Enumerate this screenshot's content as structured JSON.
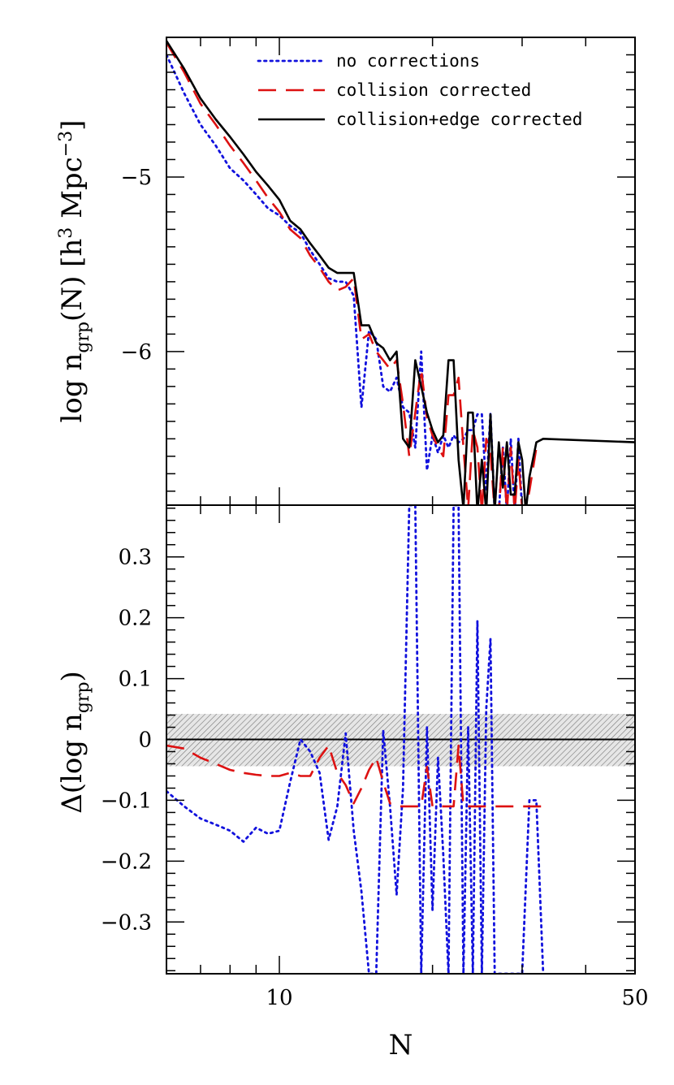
{
  "chart_data": [
    {
      "type": "line",
      "panel": "top",
      "xlabel": "",
      "ylabel": "log n_grp(N) [h^3 Mpc^-3]",
      "xscale": "log",
      "xlim": [
        6,
        50
      ],
      "ylim": [
        -6.88,
        -4.2
      ],
      "yticks": [
        {
          "value": -5,
          "label": "−5"
        },
        {
          "value": -6,
          "label": "−6"
        }
      ],
      "legend_position": "top-right",
      "series": [
        {
          "name": "no corrections",
          "color": "#1111dd",
          "style": "dotted",
          "points": [
            [
              6,
              -4.3
            ],
            [
              6.5,
              -4.52
            ],
            [
              7,
              -4.7
            ],
            [
              7.5,
              -4.82
            ],
            [
              8,
              -4.95
            ],
            [
              8.5,
              -5.02
            ],
            [
              9,
              -5.1
            ],
            [
              9.5,
              -5.18
            ],
            [
              10,
              -5.22
            ],
            [
              10.5,
              -5.28
            ],
            [
              11,
              -5.32
            ],
            [
              11.5,
              -5.42
            ],
            [
              12,
              -5.5
            ],
            [
              12.5,
              -5.58
            ],
            [
              13,
              -5.6
            ],
            [
              13.5,
              -5.6
            ],
            [
              14,
              -5.68
            ],
            [
              14.5,
              -6.32
            ],
            [
              15,
              -5.88
            ],
            [
              15.5,
              -5.93
            ],
            [
              16,
              -6.2
            ],
            [
              16.5,
              -6.23
            ],
            [
              17,
              -6.15
            ],
            [
              17.5,
              -6.32
            ],
            [
              18,
              -6.35
            ],
            [
              18.5,
              -6.55
            ],
            [
              19,
              -6.0
            ],
            [
              19.5,
              -6.68
            ],
            [
              20,
              -6.48
            ],
            [
              20.5,
              -6.58
            ],
            [
              21,
              -6.48
            ],
            [
              21.5,
              -6.55
            ],
            [
              22,
              -6.48
            ],
            [
              22.5,
              -6.52
            ],
            [
              23,
              -6.5
            ],
            [
              23.5,
              -6.45
            ],
            [
              24,
              -6.45
            ],
            [
              24.5,
              -6.36
            ],
            [
              25,
              -6.36
            ],
            [
              25.5,
              -6.8
            ],
            [
              26,
              -6.35
            ],
            [
              26.5,
              -6.92
            ],
            [
              27,
              -6.92
            ],
            [
              27.5,
              -6.55
            ],
            [
              28,
              -6.92
            ],
            [
              28.5,
              -6.5
            ],
            [
              29,
              -6.92
            ],
            [
              29.5,
              -6.5
            ],
            [
              30,
              -6.92
            ],
            [
              30.5,
              -6.92
            ],
            [
              50,
              -6.92
            ]
          ]
        },
        {
          "name": "collision corrected",
          "color": "#dd1111",
          "style": "dashed",
          "points": [
            [
              6,
              -4.23
            ],
            [
              6.5,
              -4.4
            ],
            [
              7,
              -4.58
            ],
            [
              7.5,
              -4.7
            ],
            [
              8,
              -4.82
            ],
            [
              8.5,
              -4.92
            ],
            [
              9,
              -5.02
            ],
            [
              9.5,
              -5.12
            ],
            [
              10,
              -5.2
            ],
            [
              10.5,
              -5.3
            ],
            [
              11,
              -5.35
            ],
            [
              11.5,
              -5.45
            ],
            [
              12,
              -5.52
            ],
            [
              12.5,
              -5.6
            ],
            [
              13,
              -5.65
            ],
            [
              13.5,
              -5.63
            ],
            [
              14,
              -5.58
            ],
            [
              14.5,
              -5.93
            ],
            [
              15,
              -5.9
            ],
            [
              15.5,
              -6.0
            ],
            [
              16,
              -6.05
            ],
            [
              16.5,
              -6.1
            ],
            [
              17,
              -6.05
            ],
            [
              17.5,
              -6.3
            ],
            [
              18,
              -6.6
            ],
            [
              18.5,
              -6.35
            ],
            [
              19,
              -6.1
            ],
            [
              19.5,
              -6.38
            ],
            [
              20,
              -6.48
            ],
            [
              20.5,
              -6.55
            ],
            [
              21,
              -6.6
            ],
            [
              21.5,
              -6.25
            ],
            [
              22,
              -6.25
            ],
            [
              22.5,
              -6.15
            ],
            [
              23,
              -6.55
            ],
            [
              23.5,
              -6.9
            ],
            [
              24,
              -6.45
            ],
            [
              24.5,
              -6.55
            ],
            [
              25,
              -6.92
            ],
            [
              25.5,
              -6.5
            ],
            [
              26,
              -6.58
            ],
            [
              26.5,
              -6.92
            ],
            [
              27,
              -6.92
            ],
            [
              27.5,
              -6.55
            ],
            [
              28,
              -6.92
            ],
            [
              28.5,
              -6.55
            ],
            [
              29,
              -6.92
            ],
            [
              29.5,
              -6.62
            ],
            [
              30,
              -6.9
            ],
            [
              30.5,
              -6.9
            ],
            [
              31,
              -6.8
            ],
            [
              32,
              -6.55
            ],
            [
              33,
              -6.55
            ]
          ]
        },
        {
          "name": "collision+edge corrected",
          "color": "#000000",
          "style": "solid",
          "points": [
            [
              6,
              -4.22
            ],
            [
              6.5,
              -4.38
            ],
            [
              7,
              -4.55
            ],
            [
              7.5,
              -4.67
            ],
            [
              8,
              -4.77
            ],
            [
              8.5,
              -4.87
            ],
            [
              9,
              -4.97
            ],
            [
              9.5,
              -5.05
            ],
            [
              10,
              -5.13
            ],
            [
              10.5,
              -5.25
            ],
            [
              11,
              -5.3
            ],
            [
              11.5,
              -5.38
            ],
            [
              12,
              -5.45
            ],
            [
              12.5,
              -5.52
            ],
            [
              13,
              -5.55
            ],
            [
              13.5,
              -5.55
            ],
            [
              14,
              -5.55
            ],
            [
              14.5,
              -5.85
            ],
            [
              15,
              -5.85
            ],
            [
              15.5,
              -5.95
            ],
            [
              16,
              -5.98
            ],
            [
              16.5,
              -6.05
            ],
            [
              17,
              -6.0
            ],
            [
              17.5,
              -6.5
            ],
            [
              18,
              -6.55
            ],
            [
              18.5,
              -6.05
            ],
            [
              19,
              -6.2
            ],
            [
              19.5,
              -6.35
            ],
            [
              20,
              -6.45
            ],
            [
              20.5,
              -6.52
            ],
            [
              21,
              -6.48
            ],
            [
              21.5,
              -6.05
            ],
            [
              22,
              -6.05
            ],
            [
              22.5,
              -6.62
            ],
            [
              23,
              -6.9
            ],
            [
              23.5,
              -6.35
            ],
            [
              24,
              -6.35
            ],
            [
              24.5,
              -6.92
            ],
            [
              25,
              -6.62
            ],
            [
              25.5,
              -6.92
            ],
            [
              26,
              -6.36
            ],
            [
              26.5,
              -6.92
            ],
            [
              27,
              -6.52
            ],
            [
              27.5,
              -6.78
            ],
            [
              28,
              -6.52
            ],
            [
              28.5,
              -6.82
            ],
            [
              29,
              -6.82
            ],
            [
              29.5,
              -6.52
            ],
            [
              30,
              -6.62
            ],
            [
              30.5,
              -6.92
            ],
            [
              31,
              -6.72
            ],
            [
              32,
              -6.52
            ],
            [
              33,
              -6.5
            ],
            [
              50,
              -6.52
            ]
          ]
        }
      ]
    },
    {
      "type": "line",
      "panel": "bottom",
      "xlabel": "N",
      "ylabel": "Δ(log n_grp)",
      "xscale": "log",
      "xlim": [
        6,
        50
      ],
      "ylim": [
        -0.385,
        0.385
      ],
      "xticks": [
        {
          "value": 10,
          "label": "10"
        },
        {
          "value": 50,
          "label": "50"
        }
      ],
      "yticks": [
        {
          "value": 0.3,
          "label": "0.3"
        },
        {
          "value": 0.2,
          "label": "0.2"
        },
        {
          "value": 0.1,
          "label": "0.1"
        },
        {
          "value": 0,
          "label": "0"
        },
        {
          "value": -0.1,
          "label": "−0.1"
        },
        {
          "value": -0.2,
          "label": "−0.2"
        },
        {
          "value": -0.3,
          "label": "−0.3"
        }
      ],
      "shaded_band": [
        -0.044,
        0.042
      ],
      "reference_line": 0,
      "series": [
        {
          "name": "no corrections",
          "color": "#1111dd",
          "style": "dotted",
          "points": [
            [
              6,
              -0.085
            ],
            [
              6.5,
              -0.11
            ],
            [
              7,
              -0.13
            ],
            [
              7.5,
              -0.14
            ],
            [
              8,
              -0.15
            ],
            [
              8.5,
              -0.168
            ],
            [
              9,
              -0.145
            ],
            [
              9.5,
              -0.155
            ],
            [
              10,
              -0.15
            ],
            [
              10.5,
              -0.07
            ],
            [
              11,
              0.0
            ],
            [
              11.5,
              -0.02
            ],
            [
              12,
              -0.055
            ],
            [
              12.5,
              -0.165
            ],
            [
              13,
              -0.11
            ],
            [
              13.5,
              0.01
            ],
            [
              14,
              -0.15
            ],
            [
              14.5,
              -0.25
            ],
            [
              15,
              -0.385
            ],
            [
              15.5,
              -0.385
            ],
            [
              16,
              0.015
            ],
            [
              16.5,
              -0.11
            ],
            [
              17,
              -0.255
            ],
            [
              17.5,
              -0.08
            ],
            [
              18,
              0.385
            ],
            [
              18.5,
              0.385
            ],
            [
              19,
              -0.385
            ],
            [
              19.5,
              0.02
            ],
            [
              20,
              -0.28
            ],
            [
              20.5,
              -0.03
            ],
            [
              21,
              -0.19
            ],
            [
              21.5,
              -0.385
            ],
            [
              22,
              0.385
            ],
            [
              22.5,
              0.385
            ],
            [
              23,
              -0.385
            ],
            [
              23.5,
              0.02
            ],
            [
              24,
              -0.385
            ],
            [
              24.5,
              0.195
            ],
            [
              25,
              -0.385
            ],
            [
              25.5,
              0.05
            ],
            [
              26,
              0.165
            ],
            [
              26.5,
              -0.385
            ],
            [
              27,
              -0.385
            ],
            [
              28,
              -0.385
            ],
            [
              30,
              -0.385
            ],
            [
              31,
              -0.1
            ],
            [
              32,
              -0.1
            ],
            [
              33,
              -0.385
            ]
          ]
        },
        {
          "name": "collision corrected",
          "color": "#dd1111",
          "style": "dashed",
          "points": [
            [
              6,
              -0.01
            ],
            [
              6.5,
              -0.015
            ],
            [
              7,
              -0.03
            ],
            [
              7.5,
              -0.04
            ],
            [
              8,
              -0.05
            ],
            [
              8.5,
              -0.055
            ],
            [
              9,
              -0.058
            ],
            [
              9.5,
              -0.06
            ],
            [
              10,
              -0.06
            ],
            [
              10.5,
              -0.055
            ],
            [
              11,
              -0.06
            ],
            [
              11.5,
              -0.06
            ],
            [
              12,
              -0.03
            ],
            [
              12.5,
              -0.01
            ],
            [
              13,
              -0.055
            ],
            [
              13.5,
              -0.075
            ],
            [
              14,
              -0.105
            ],
            [
              14.5,
              -0.08
            ],
            [
              15,
              -0.05
            ],
            [
              15.5,
              -0.03
            ],
            [
              16,
              -0.07
            ],
            [
              16.5,
              -0.105
            ],
            [
              17,
              -0.11
            ],
            [
              17.5,
              -0.11
            ],
            [
              18,
              -0.11
            ],
            [
              18.5,
              -0.11
            ],
            [
              19,
              -0.11
            ],
            [
              19.5,
              -0.045
            ],
            [
              20,
              -0.11
            ],
            [
              20.5,
              -0.11
            ],
            [
              21,
              -0.11
            ],
            [
              21.5,
              -0.11
            ],
            [
              22,
              -0.11
            ],
            [
              22.5,
              -0.01
            ],
            [
              23,
              -0.11
            ],
            [
              23.5,
              -0.11
            ],
            [
              24,
              -0.11
            ],
            [
              24.5,
              -0.11
            ],
            [
              25,
              -0.11
            ],
            [
              25.5,
              -0.11
            ],
            [
              26,
              -0.11
            ],
            [
              26.5,
              -0.11
            ],
            [
              27,
              -0.11
            ],
            [
              28,
              -0.11
            ],
            [
              30,
              -0.11
            ],
            [
              33,
              -0.11
            ]
          ]
        }
      ]
    }
  ]
}
